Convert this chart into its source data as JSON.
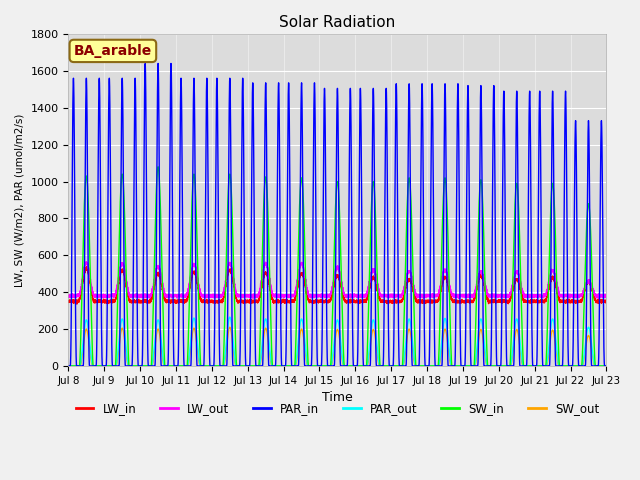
{
  "title": "Solar Radiation",
  "ylabel": "LW, SW (W/m2), PAR (umol/m2/s)",
  "xlabel": "Time",
  "xlim_start_day": 8,
  "xlim_end_day": 23,
  "ylim": [
    0,
    1800
  ],
  "yticks": [
    0,
    200,
    400,
    600,
    800,
    1000,
    1200,
    1400,
    1600,
    1800
  ],
  "xtick_days": [
    8,
    9,
    10,
    11,
    12,
    13,
    14,
    15,
    16,
    17,
    18,
    19,
    20,
    21,
    22,
    23
  ],
  "fig_bg_color": "#f0f0f0",
  "plot_bg_color": "#dcdcdc",
  "series": {
    "LW_in": {
      "color": "#ff0000",
      "lw": 1.0
    },
    "LW_out": {
      "color": "#ff00ff",
      "lw": 1.0
    },
    "PAR_in": {
      "color": "#0000ff",
      "lw": 1.0
    },
    "PAR_out": {
      "color": "#00ffff",
      "lw": 1.0
    },
    "SW_in": {
      "color": "#00ff00",
      "lw": 1.0
    },
    "SW_out": {
      "color": "#ffa500",
      "lw": 1.0
    }
  },
  "annotation": {
    "text": "BA_arable",
    "fontsize": 10,
    "color": "#8b0000",
    "bbox_facecolor": "#ffff99",
    "bbox_edgecolor": "#8b6914"
  },
  "par_in_peaks": [
    1560,
    1560,
    1640,
    1560,
    1560,
    1535,
    1535,
    1505,
    1505,
    1530,
    1530,
    1520,
    1490,
    1490,
    1330
  ],
  "sw_in_peaks": [
    1030,
    1040,
    1080,
    1040,
    1040,
    1025,
    1020,
    1000,
    1000,
    1020,
    1020,
    1010,
    990,
    990,
    880
  ],
  "lw_in_base": 350,
  "lw_in_peaks": [
    180,
    170,
    150,
    160,
    170,
    155,
    150,
    140,
    130,
    120,
    130,
    140,
    120,
    130,
    110
  ],
  "lw_out_base": 380,
  "lw_out_peaks": [
    180,
    175,
    160,
    170,
    175,
    175,
    175,
    155,
    140,
    135,
    140,
    130,
    130,
    140,
    80
  ],
  "par_out_peaks": [
    250,
    255,
    250,
    260,
    265,
    255,
    255,
    250,
    250,
    255,
    258,
    255,
    255,
    255,
    210
  ],
  "sw_out_peaks": [
    200,
    205,
    200,
    205,
    210,
    205,
    200,
    198,
    198,
    200,
    200,
    198,
    198,
    195,
    165
  ]
}
